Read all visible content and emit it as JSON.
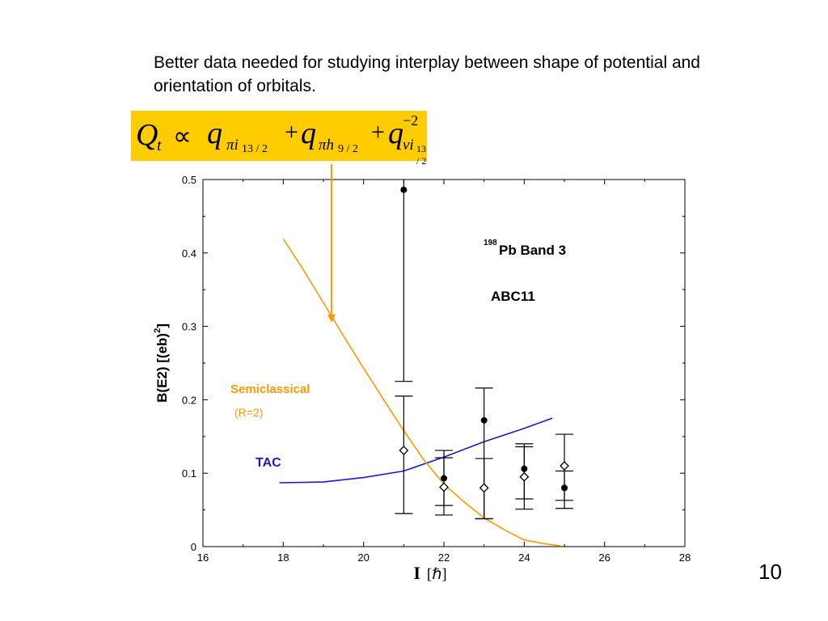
{
  "slide": {
    "note": "Better data needed for studying interplay between shape of potential and orientation of orbitals.",
    "page_number": "10",
    "formula": {
      "Q": "Q",
      "t": "t",
      "prop": "∝",
      "q1": "q",
      "sub1": "πi",
      "sub1b": "13 / 2",
      "plus1": "+",
      "q2": "q",
      "sub2": "πh",
      "sub2b": "9 / 2",
      "plus2": "+",
      "q3": "q",
      "sup3": "−2",
      "sub3": "νi",
      "sub3b": "13 / 2"
    },
    "box_color": "#ffcc00",
    "arrow_color": "#ff9900"
  },
  "chart_data": {
    "type": "scatter",
    "title_nucleus_mass": "198",
    "title": "Pb Band 3",
    "subtitle": "ABC11",
    "xlabel_main": "I",
    "xlabel_unit": "[ℏ]",
    "ylabel": "B(E2) [(eb)",
    "ylabel_sup": "2",
    "ylabel_close": "]",
    "xlim": [
      16,
      28
    ],
    "ylim": [
      0,
      0.5
    ],
    "x_ticks": [
      16,
      18,
      20,
      22,
      24,
      26,
      28
    ],
    "y_ticks": [
      0,
      0.1,
      0.2,
      0.3,
      0.4,
      0.5
    ],
    "y_tick_labels": [
      "0",
      "0.1",
      "0.2",
      "0.3",
      "0.4",
      "0.5"
    ],
    "series": [
      {
        "marker": "filled-circle",
        "color": "#000000",
        "points": [
          {
            "x": 21,
            "y": 0.486,
            "lo": 0.225,
            "hi": 0.5
          },
          {
            "x": 22,
            "y": 0.093,
            "lo": 0.056,
            "hi": 0.131
          },
          {
            "x": 23,
            "y": 0.172,
            "lo": 0.038,
            "hi": 0.216
          },
          {
            "x": 24,
            "y": 0.106,
            "lo": 0.065,
            "hi": 0.136
          },
          {
            "x": 25,
            "y": 0.08,
            "lo": 0.063,
            "hi": 0.103
          }
        ]
      },
      {
        "marker": "open-diamond",
        "color": "#000000",
        "points": [
          {
            "x": 21,
            "y": 0.131,
            "lo": 0.045,
            "hi": 0.205
          },
          {
            "x": 22,
            "y": 0.081,
            "lo": 0.043,
            "hi": 0.121
          },
          {
            "x": 23,
            "y": 0.08,
            "lo": 0.038,
            "hi": 0.12
          },
          {
            "x": 24,
            "y": 0.095,
            "lo": 0.051,
            "hi": 0.14
          },
          {
            "x": 25,
            "y": 0.11,
            "lo": 0.052,
            "hi": 0.153
          }
        ]
      },
      {
        "name": "TAC",
        "type": "line",
        "color": "#1a1acc",
        "x": [
          17.9,
          19.0,
          20.0,
          21.0,
          22.0,
          23.0,
          24.0,
          24.7
        ],
        "y": [
          0.087,
          0.088,
          0.094,
          0.103,
          0.122,
          0.143,
          0.161,
          0.175
        ]
      },
      {
        "name": "Semiclassical",
        "name_sub": "(R=2)",
        "type": "line",
        "color": "#ff9900",
        "x": [
          18.0,
          18.5,
          19.0,
          19.5,
          20.0,
          20.5,
          21.0,
          21.5,
          22.0,
          22.5,
          23.0,
          23.5,
          24.0,
          24.5,
          24.9
        ],
        "y": [
          0.419,
          0.377,
          0.332,
          0.287,
          0.243,
          0.2,
          0.158,
          0.118,
          0.085,
          0.061,
          0.039,
          0.023,
          0.009,
          0.004,
          0.001
        ]
      }
    ],
    "arrow_to": {
      "x": 19.2,
      "y": 0.305
    }
  }
}
